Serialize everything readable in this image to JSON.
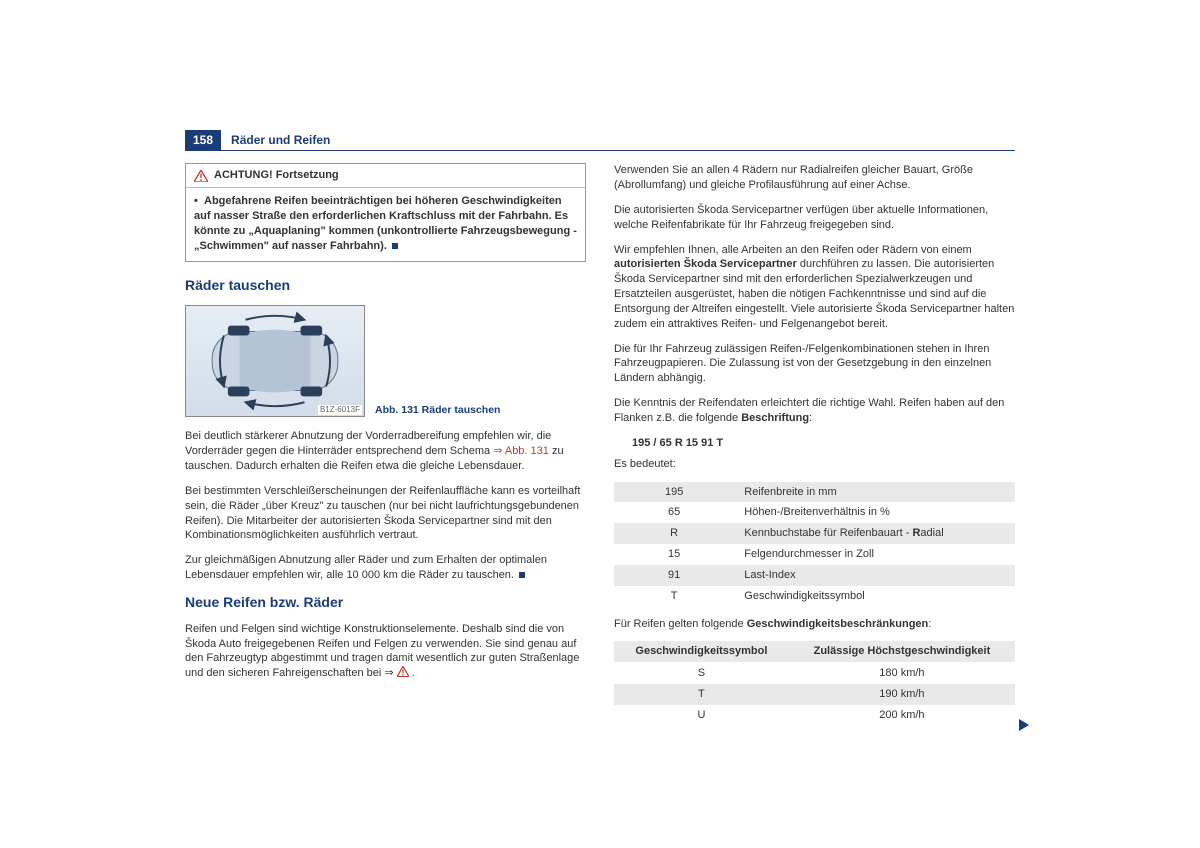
{
  "page": {
    "number": "158",
    "title": "Räder und Reifen"
  },
  "colors": {
    "brand": "#1a3d7a",
    "warn": "#c0392b",
    "stripe": "#e9e9e9",
    "text": "#333333",
    "border": "#999999"
  },
  "warn": {
    "heading": "ACHTUNG! Fortsetzung",
    "body_pre": "Abgefahrene Reifen beeinträchtigen bei höheren Geschwindigkeiten auf nasser Straße den erforderlichen Kraftschluss mit der Fahrbahn. Es könnte zu „Aquaplaning\" kommen (unkontrollierte Fahrzeugsbewegung - „Schwimmen\" auf nasser Fahrbahn)."
  },
  "sec1": {
    "title": "Räder tauschen",
    "fig_caption": "Abb. 131  Räder tauschen",
    "fig_code": "B1Z-6013F",
    "p1_a": "Bei deutlich stärkerer Abnutzung der Vorderradbereifung empfehlen wir, die Vorderräder gegen die Hinterräder entsprechend dem Schema ",
    "p1_link": "⇒ Abb. 131",
    "p1_b": " zu tauschen. Dadurch erhalten die Reifen etwa die gleiche Lebensdauer.",
    "p2": "Bei bestimmten Verschleißerscheinungen der Reifenlauffläche kann es vorteilhaft sein, die Räder „über Kreuz\" zu tauschen (nur bei nicht laufrichtungsgebundenen Reifen). Die Mitarbeiter der autorisierten Škoda Servicepartner sind mit den Kombinationsmöglichkeiten ausführlich vertraut.",
    "p3": "Zur gleichmäßigen Abnutzung aller Räder und zum Erhalten der optimalen Lebensdauer empfehlen wir, alle 10 000 km die Räder zu tauschen."
  },
  "sec2": {
    "title": "Neue Reifen bzw. Räder",
    "p1": "Reifen und Felgen sind wichtige Konstruktionselemente. Deshalb sind die von Škoda Auto freigegebenen Reifen und Felgen zu verwenden. Sie sind genau auf den Fahrzeugtyp abgestimmt und tragen damit wesentlich zur guten Straßenlage und den sicheren Fahreigenschaften bei ⇒ "
  },
  "right": {
    "p1": "Verwenden Sie an allen 4 Rädern nur Radialreifen gleicher Bauart, Größe (Abrollumfang) und gleiche Profilausführung auf einer Achse.",
    "p2": "Die autorisierten Škoda Servicepartner verfügen über aktuelle Informationen, welche Reifenfabrikate für Ihr Fahrzeug freigegeben sind.",
    "p3_a": "Wir empfehlen Ihnen, alle Arbeiten an den Reifen oder Rädern von einem ",
    "p3_bold": "autorisierten Škoda Servicepartner",
    "p3_b": " durchführen zu lassen. Die autorisierten Škoda Servicepartner sind mit den erforderlichen Spezialwerkzeugen und Ersatzteilen ausgerüstet, haben die nötigen Fachkenntnisse und sind auf die Entsorgung der Altreifen eingestellt. Viele autorisierte Škoda Servicepartner halten zudem ein attraktives Reifen- und Felgenangebot bereit.",
    "p4": "Die für Ihr Fahrzeug zulässigen Reifen-/Felgenkombinationen stehen in Ihren Fahrzeugpapieren. Die Zulassung ist von der Gesetzgebung in den einzelnen Ländern abhängig.",
    "p5_a": "Die Kenntnis der Reifendaten erleichtert die richtige Wahl. Reifen haben auf den Flanken z.B. die folgende ",
    "p5_bold": "Beschriftung",
    "p5_b": ":",
    "tirespec": "195 / 65 R 15 91 T",
    "esbedeutet": "Es bedeutet:",
    "table1": [
      {
        "k": "195",
        "v": "Reifenbreite in mm"
      },
      {
        "k": "65",
        "v": "Höhen-/Breitenverhältnis in %"
      },
      {
        "k": "R",
        "v_a": "Kennbuchstabe für Reifenbauart - ",
        "v_bold": "R",
        "v_b": "adial"
      },
      {
        "k": "15",
        "v": "Felgendurchmesser in Zoll"
      },
      {
        "k": "91",
        "v": "Last-Index"
      },
      {
        "k": "T",
        "v": "Geschwindigkeitssymbol"
      }
    ],
    "p6_a": "Für Reifen gelten folgende ",
    "p6_bold": "Geschwindigkeitsbeschränkungen",
    "p6_b": ":",
    "table2_head": {
      "c1": "Geschwindigkeitssymbol",
      "c2": "Zulässige Höchstgeschwindigkeit"
    },
    "table2": [
      {
        "sym": "S",
        "spd": "180 km/h"
      },
      {
        "sym": "T",
        "spd": "190 km/h"
      },
      {
        "sym": "U",
        "spd": "200 km/h"
      }
    ]
  }
}
